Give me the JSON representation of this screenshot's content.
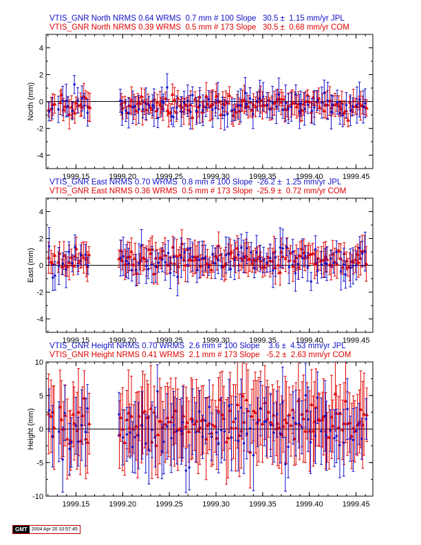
{
  "colors": {
    "blue": "#1010c8",
    "red": "#e00000",
    "frame": "#000000"
  },
  "gmt_stamp": {
    "logo": "GMT",
    "timestamp": "2004 Apr 20 10:57:45"
  },
  "chart_data": [
    {
      "type": "scatter",
      "ylabel": "North (mm)",
      "ylim": [
        -5,
        5
      ],
      "yticks": [
        -4,
        -2,
        0,
        2,
        4
      ],
      "xlim": [
        1999.118,
        1999.468
      ],
      "xticks": [
        "1999.15",
        "1999.20",
        "1999.25",
        "1999.30",
        "1999.35",
        "1999.40",
        "1999.45"
      ],
      "header_blue": "VTIS_GNR North NRMS 0.64 WRMS  0.7 mm # 100 Slope   30.5 ±  1.15 mm/yr JPL",
      "header_red": "VTIS_GNR North NRMS 0.39 WRMS  0.5 mm # 173 Slope   30.5 ±  0.68 mm/yr COM",
      "series": [
        {
          "name": "JPL",
          "color": "blue",
          "marker": "circle",
          "n": 100,
          "slope": 30.5,
          "intercept": -0.33,
          "scatter": 0.45,
          "err": [
            0.6,
            1.4
          ],
          "seed": 11
        },
        {
          "name": "COM",
          "color": "red",
          "marker": "triangle",
          "n": 173,
          "slope": 30.5,
          "intercept": -0.33,
          "scatter": 0.35,
          "err": [
            0.4,
            1.1
          ],
          "seed": 29
        }
      ]
    },
    {
      "type": "scatter",
      "ylabel": "East (mm)",
      "ylim": [
        -5,
        5
      ],
      "yticks": [
        -4,
        -2,
        0,
        2,
        4
      ],
      "xlim": [
        1999.118,
        1999.468
      ],
      "xticks": [
        "1999.15",
        "1999.20",
        "1999.25",
        "1999.30",
        "1999.35",
        "1999.40",
        "1999.45"
      ],
      "header_blue": "VTIS_GNR East NRMS 0.70 WRMS  0.8 mm # 100 Slope  -26.2 ±  1.25 mm/yr JPL",
      "header_red": "VTIS_GNR East NRMS 0.36 WRMS  0.5 mm # 173 Slope  -25.9 ±  0.72 mm/yr COM",
      "series": [
        {
          "name": "JPL",
          "color": "blue",
          "marker": "circle",
          "n": 100,
          "slope": -26.2,
          "intercept": 0.4,
          "scatter": 0.6,
          "err": [
            0.6,
            1.5
          ],
          "seed": 47
        },
        {
          "name": "COM",
          "color": "red",
          "marker": "triangle",
          "n": 173,
          "slope": -25.9,
          "intercept": 0.4,
          "scatter": 0.4,
          "err": [
            0.5,
            1.3
          ],
          "seed": 83
        }
      ]
    },
    {
      "type": "scatter",
      "ylabel": "Height (mm)",
      "ylim": [
        -10,
        10
      ],
      "yticks": [
        -10,
        -5,
        0,
        5,
        10
      ],
      "xlim": [
        1999.118,
        1999.468
      ],
      "xticks": [
        "1999.15",
        "1999.20",
        "1999.25",
        "1999.30",
        "1999.35",
        "1999.40",
        "1999.45"
      ],
      "header_blue": "VTIS_GNR Height NRMS 0.70 WRMS  2.6 mm # 100 Slope    3.6 ±  4.53 mm/yr JPL",
      "header_red": "VTIS_GNR Height NRMS 0.41 WRMS  2.1 mm # 173 Slope   -5.2 ±  2.63 mm/yr COM",
      "series": [
        {
          "name": "JPL",
          "color": "blue",
          "marker": "circle",
          "n": 100,
          "slope": 3.6,
          "intercept": 0.0,
          "scatter": 2.4,
          "err": [
            3.0,
            5.5
          ],
          "seed": 101
        },
        {
          "name": "COM",
          "color": "red",
          "marker": "triangle",
          "n": 173,
          "slope": -5.2,
          "intercept": 1.0,
          "scatter": 1.8,
          "err": [
            3.5,
            6.5
          ],
          "seed": 149
        }
      ]
    }
  ]
}
